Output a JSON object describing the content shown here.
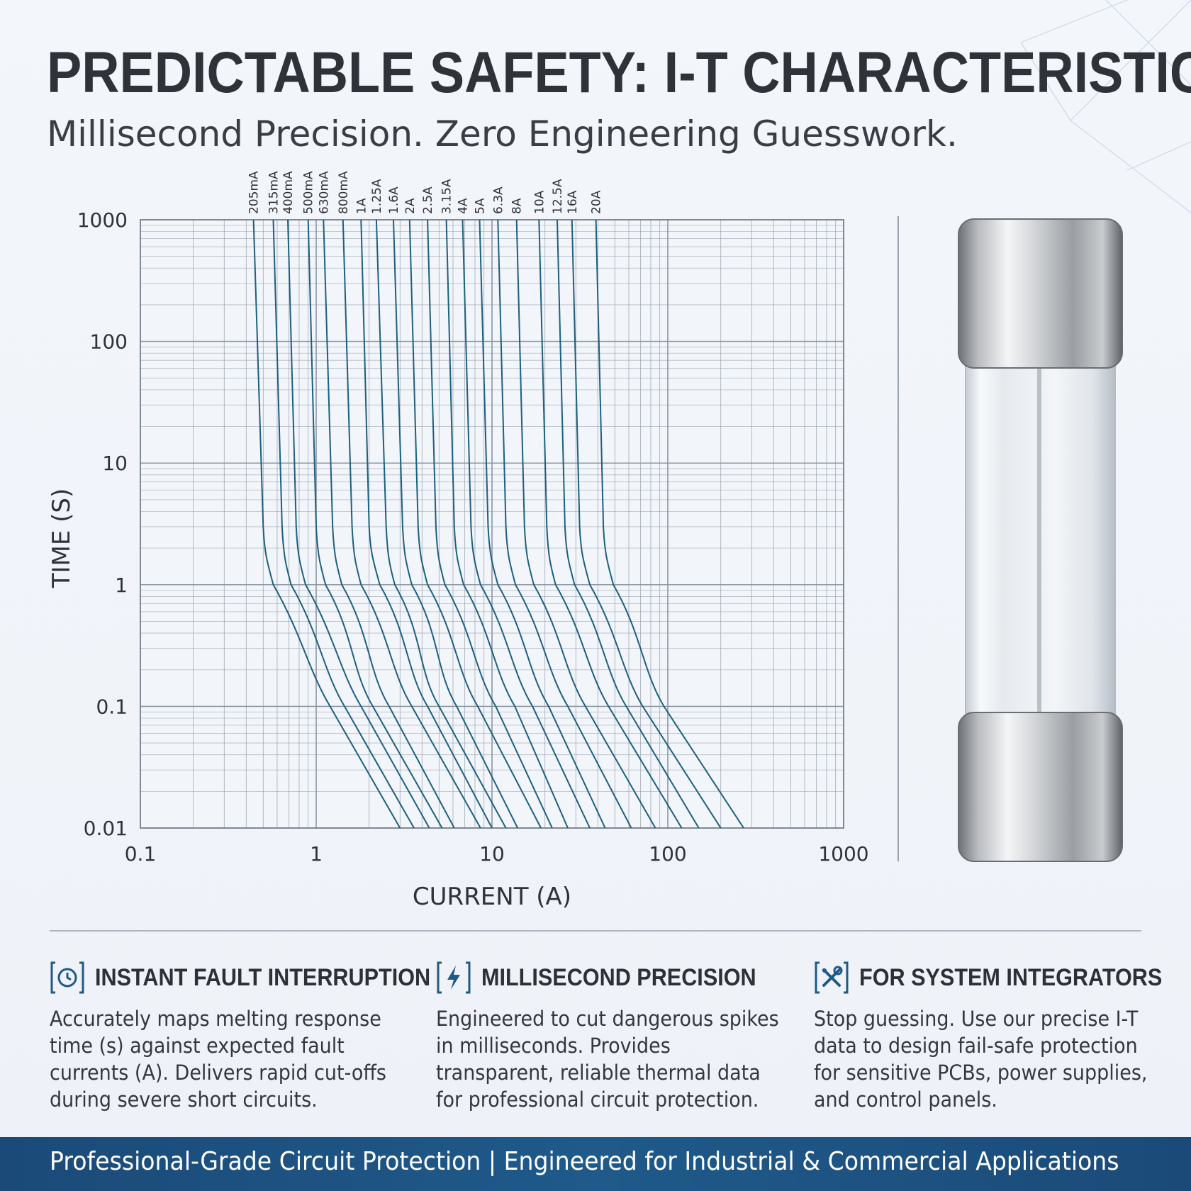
{
  "header": {
    "title": "PREDICTABLE SAFETY: I-T CHARACTERISTICS",
    "subtitle": "Millisecond Precision. Zero Engineering Guesswork."
  },
  "chart_data": {
    "type": "line",
    "xlabel": "CURRENT (A)",
    "ylabel": "TIME (S)",
    "x_scale": "log",
    "y_scale": "log",
    "xlim": [
      0.1,
      1000
    ],
    "ylim": [
      0.01,
      1000
    ],
    "x_ticks": [
      "0.1",
      "1",
      "10",
      "100",
      "1000"
    ],
    "y_ticks": [
      "0.01",
      "0.1",
      "1",
      "10",
      "100",
      "1000"
    ],
    "grid": true,
    "series": [
      {
        "name": "205mA",
        "points": [
          [
            0.44,
            1000
          ],
          [
            0.5,
            3
          ],
          [
            0.57,
            1
          ],
          [
            1.2,
            0.1
          ],
          [
            3.0,
            0.01
          ]
        ]
      },
      {
        "name": "315mA",
        "points": [
          [
            0.57,
            1000
          ],
          [
            0.64,
            3
          ],
          [
            0.72,
            1
          ],
          [
            1.45,
            0.1
          ],
          [
            3.6,
            0.01
          ]
        ]
      },
      {
        "name": "400mA",
        "points": [
          [
            0.69,
            1000
          ],
          [
            0.77,
            3
          ],
          [
            0.87,
            1
          ],
          [
            1.8,
            0.1
          ],
          [
            4.4,
            0.01
          ]
        ]
      },
      {
        "name": "500mA",
        "points": [
          [
            0.9,
            1000
          ],
          [
            1.0,
            3
          ],
          [
            1.13,
            1
          ],
          [
            2.1,
            0.1
          ],
          [
            5.2,
            0.01
          ]
        ]
      },
      {
        "name": "630mA",
        "points": [
          [
            1.1,
            1000
          ],
          [
            1.24,
            3
          ],
          [
            1.4,
            1
          ],
          [
            2.6,
            0.1
          ],
          [
            6.1,
            0.01
          ]
        ]
      },
      {
        "name": "800mA",
        "points": [
          [
            1.42,
            1000
          ],
          [
            1.6,
            3
          ],
          [
            1.8,
            1
          ],
          [
            3.5,
            0.1
          ],
          [
            8.6,
            0.01
          ]
        ]
      },
      {
        "name": "1A",
        "points": [
          [
            1.8,
            1000
          ],
          [
            2.0,
            3
          ],
          [
            2.3,
            1
          ],
          [
            4.3,
            0.1
          ],
          [
            10,
            0.01
          ]
        ]
      },
      {
        "name": "1.25A",
        "points": [
          [
            2.2,
            1000
          ],
          [
            2.5,
            3
          ],
          [
            2.8,
            1
          ],
          [
            5.0,
            0.1
          ],
          [
            12,
            0.01
          ]
        ]
      },
      {
        "name": "1.6A",
        "points": [
          [
            2.75,
            1000
          ],
          [
            3.1,
            3
          ],
          [
            3.5,
            1
          ],
          [
            6.3,
            0.1
          ],
          [
            14,
            0.01
          ]
        ]
      },
      {
        "name": "2A",
        "points": [
          [
            3.4,
            1000
          ],
          [
            3.8,
            3
          ],
          [
            4.3,
            1
          ],
          [
            8.3,
            0.1
          ],
          [
            19,
            0.01
          ]
        ]
      },
      {
        "name": "2.5A",
        "points": [
          [
            4.3,
            1000
          ],
          [
            4.8,
            3
          ],
          [
            5.4,
            1
          ],
          [
            10.5,
            0.1
          ],
          [
            22,
            0.01
          ]
        ]
      },
      {
        "name": "3.15A",
        "points": [
          [
            5.5,
            1000
          ],
          [
            6.1,
            3
          ],
          [
            6.9,
            1
          ],
          [
            13.5,
            0.1
          ],
          [
            27,
            0.01
          ]
        ]
      },
      {
        "name": "4A",
        "points": [
          [
            6.8,
            1000
          ],
          [
            7.6,
            3
          ],
          [
            8.6,
            1
          ],
          [
            17,
            0.1
          ],
          [
            36,
            0.01
          ]
        ]
      },
      {
        "name": "5A",
        "points": [
          [
            8.5,
            1000
          ],
          [
            9.5,
            3
          ],
          [
            10.8,
            1
          ],
          [
            21,
            0.1
          ],
          [
            44,
            0.01
          ]
        ]
      },
      {
        "name": "6.3A",
        "points": [
          [
            10.8,
            1000
          ],
          [
            12,
            3
          ],
          [
            13.6,
            1
          ],
          [
            27,
            0.1
          ],
          [
            62,
            0.01
          ]
        ]
      },
      {
        "name": "8A",
        "points": [
          [
            13.8,
            1000
          ],
          [
            15.3,
            3
          ],
          [
            17.3,
            1
          ],
          [
            34,
            0.1
          ],
          [
            85,
            0.01
          ]
        ]
      },
      {
        "name": "10A",
        "points": [
          [
            18.5,
            1000
          ],
          [
            20.5,
            3
          ],
          [
            23,
            1
          ],
          [
            46,
            0.1
          ],
          [
            120,
            0.01
          ]
        ]
      },
      {
        "name": "12.5A",
        "points": [
          [
            23.5,
            1000
          ],
          [
            26,
            3
          ],
          [
            29.5,
            1
          ],
          [
            58,
            0.1
          ],
          [
            150,
            0.01
          ]
        ]
      },
      {
        "name": "16A",
        "points": [
          [
            28.5,
            1000
          ],
          [
            31.5,
            3
          ],
          [
            36,
            1
          ],
          [
            72,
            0.1
          ],
          [
            200,
            0.01
          ]
        ]
      },
      {
        "name": "20A",
        "points": [
          [
            39,
            1000
          ],
          [
            43,
            3
          ],
          [
            49,
            1
          ],
          [
            95,
            0.1
          ],
          [
            270,
            0.01
          ]
        ]
      }
    ]
  },
  "features": [
    {
      "icon": "clock-icon",
      "title": "INSTANT FAULT INTERRUPTION",
      "body": "Accurately maps melting response time (s) against expected fault currents (A). Delivers rapid cut-offs during severe short circuits."
    },
    {
      "icon": "lightning-icon",
      "title": "MILLISECOND PRECISION",
      "body": "Engineered to cut dangerous spikes in milliseconds. Provides transparent, reliable thermal data for professional circuit protection."
    },
    {
      "icon": "tools-icon",
      "title": "FOR SYSTEM INTEGRATORS",
      "body": "Stop guessing. Use our precise I-T data to design fail-safe protection for sensitive PCBs, power supplies, and control panels."
    }
  ],
  "footer": {
    "text": "Professional-Grade Circuit Protection | Engineered for Industrial & Commercial Applications"
  },
  "colors": {
    "curve": "#1e5f80",
    "grid": "#8d97a3",
    "accent": "#1e5a85",
    "footer_bg": "#1d5282"
  }
}
